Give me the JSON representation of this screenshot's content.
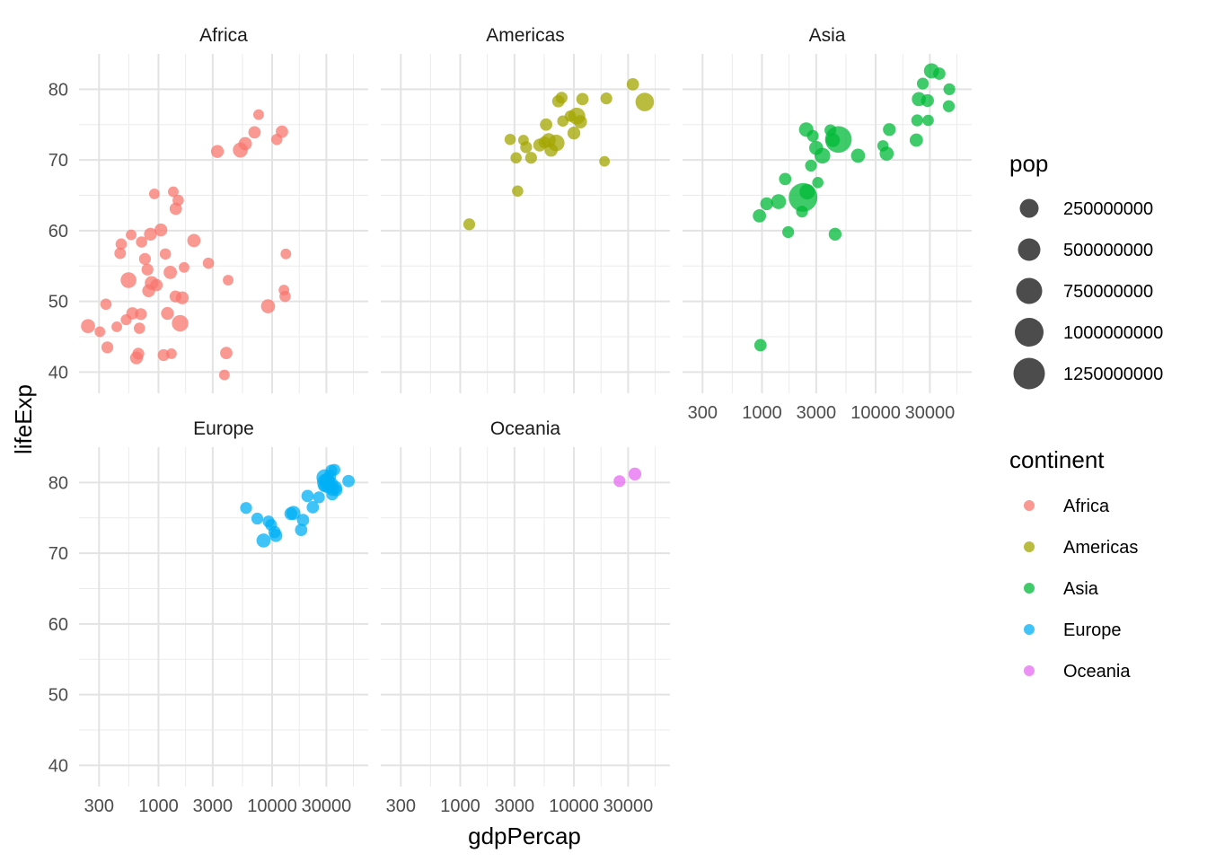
{
  "chart_data": {
    "type": "scatter",
    "facet_by": "continent",
    "xlabel": "gdpPercap",
    "ylabel": "lifeExp",
    "x_scale": "log10",
    "xlim": [
      200,
      70000
    ],
    "ylim": [
      37,
      85
    ],
    "x_ticks": [
      300,
      1000,
      3000,
      10000,
      30000
    ],
    "x_tick_labels": [
      "300",
      "1000",
      "3000",
      "10000",
      "30000"
    ],
    "y_ticks": [
      40,
      50,
      60,
      70,
      80
    ],
    "y_tick_labels": [
      "40",
      "50",
      "60",
      "70",
      "80"
    ],
    "grid": true,
    "size_legend": {
      "title": "pop",
      "breaks": [
        250000000,
        500000000,
        750000000,
        1000000000,
        1250000000
      ],
      "labels": [
        "250000000",
        "500000000",
        "750000000",
        "1000000000",
        "1250000000"
      ]
    },
    "color_legend": {
      "title": "continent",
      "position": "right"
    },
    "series": [
      {
        "name": "Africa",
        "color": "#F8766D",
        "points": [
          [
            240,
            46.5,
            20
          ],
          [
            305,
            45.7,
            6
          ],
          [
            345,
            49.6,
            8
          ],
          [
            355,
            43.5,
            10
          ],
          [
            430,
            46.4,
            6
          ],
          [
            470,
            58.1,
            8
          ],
          [
            460,
            56.8,
            9
          ],
          [
            520,
            47.4,
            7
          ],
          [
            545,
            53.0,
            30
          ],
          [
            590,
            48.3,
            12
          ],
          [
            575,
            59.4,
            6
          ],
          [
            640,
            42.0,
            14
          ],
          [
            665,
            42.6,
            10
          ],
          [
            680,
            46.2,
            8
          ],
          [
            700,
            48.2,
            10
          ],
          [
            710,
            58.4,
            8
          ],
          [
            760,
            56.0,
            10
          ],
          [
            800,
            54.5,
            10
          ],
          [
            920,
            65.2,
            6
          ],
          [
            850,
            59.5,
            14
          ],
          [
            820,
            51.5,
            14
          ],
          [
            870,
            52.6,
            18
          ],
          [
            960,
            52.3,
            12
          ],
          [
            1050,
            60.1,
            14
          ],
          [
            1110,
            42.4,
            10
          ],
          [
            1150,
            56.7,
            8
          ],
          [
            1270,
            54.1,
            16
          ],
          [
            1200,
            48.3,
            14
          ],
          [
            1300,
            42.6,
            6
          ],
          [
            1350,
            65.5,
            6
          ],
          [
            1420,
            63.1,
            12
          ],
          [
            1490,
            64.3,
            8
          ],
          [
            1410,
            50.7,
            10
          ],
          [
            1680,
            54.8,
            6
          ],
          [
            1620,
            50.5,
            14
          ],
          [
            1550,
            46.9,
            35
          ],
          [
            2050,
            58.6,
            16
          ],
          [
            2750,
            55.4,
            8
          ],
          [
            3300,
            71.2,
            14
          ],
          [
            3800,
            39.6,
            6
          ],
          [
            3950,
            42.7,
            12
          ],
          [
            4100,
            53.0,
            6
          ],
          [
            5250,
            71.4,
            25
          ],
          [
            5800,
            72.3,
            16
          ],
          [
            7000,
            73.9,
            12
          ],
          [
            7600,
            76.4,
            6
          ],
          [
            9200,
            49.3,
            20
          ],
          [
            11000,
            72.9,
            8
          ],
          [
            12200,
            74.0,
            12
          ],
          [
            12700,
            51.6,
            6
          ],
          [
            13000,
            50.7,
            8
          ],
          [
            13200,
            56.7,
            6
          ]
        ]
      },
      {
        "name": "Americas",
        "color": "#A3A500",
        "points": [
          [
            1200,
            60.9,
            10
          ],
          [
            2750,
            72.9,
            8
          ],
          [
            3100,
            70.3,
            8
          ],
          [
            3200,
            65.6,
            8
          ],
          [
            3800,
            71.8,
            10
          ],
          [
            3600,
            72.8,
            6
          ],
          [
            4200,
            70.3,
            10
          ],
          [
            5000,
            72.1,
            14
          ],
          [
            5500,
            72.5,
            10
          ],
          [
            5700,
            75.0,
            12
          ],
          [
            6000,
            72.8,
            20
          ],
          [
            6300,
            71.4,
            16
          ],
          [
            7000,
            72.4,
            35
          ],
          [
            7300,
            78.3,
            12
          ],
          [
            7800,
            78.8,
            10
          ],
          [
            8000,
            75.5,
            8
          ],
          [
            9300,
            76.2,
            8
          ],
          [
            10600,
            76.2,
            38
          ],
          [
            10000,
            73.8,
            14
          ],
          [
            11400,
            75.4,
            16
          ],
          [
            11900,
            78.6,
            12
          ],
          [
            18600,
            69.8,
            6
          ],
          [
            19300,
            78.7,
            10
          ],
          [
            33000,
            80.7,
            12
          ],
          [
            42000,
            78.2,
            50
          ]
        ]
      },
      {
        "name": "Asia",
        "color": "#00BA38",
        "points": [
          [
            950,
            62.1,
            16
          ],
          [
            970,
            43.8,
            12
          ],
          [
            1100,
            63.8,
            14
          ],
          [
            1400,
            64.1,
            25
          ],
          [
            1600,
            67.3,
            12
          ],
          [
            1700,
            59.8,
            10
          ],
          [
            2250,
            62.7,
            10
          ],
          [
            2300,
            64.7,
            170
          ],
          [
            2450,
            74.3,
            22
          ],
          [
            2500,
            65.5,
            28
          ],
          [
            2700,
            69.2,
            10
          ],
          [
            2800,
            73.4,
            10
          ],
          [
            3000,
            71.7,
            20
          ],
          [
            3100,
            66.8,
            8
          ],
          [
            3400,
            70.6,
            30
          ],
          [
            4000,
            74.2,
            10
          ],
          [
            4200,
            72.8,
            20
          ],
          [
            4400,
            59.5,
            14
          ],
          [
            4700,
            72.9,
            140
          ],
          [
            7000,
            70.6,
            20
          ],
          [
            11600,
            72.0,
            8
          ],
          [
            12500,
            70.9,
            20
          ],
          [
            13200,
            74.3,
            14
          ],
          [
            22800,
            72.8,
            16
          ],
          [
            23200,
            75.6,
            10
          ],
          [
            24000,
            78.6,
            20
          ],
          [
            26000,
            80.8,
            10
          ],
          [
            28600,
            78.4,
            14
          ],
          [
            29000,
            75.6,
            8
          ],
          [
            31000,
            82.6,
            26
          ],
          [
            36300,
            82.2,
            12
          ],
          [
            44000,
            77.6,
            10
          ],
          [
            44500,
            80.0,
            10
          ]
        ]
      },
      {
        "name": "Europe",
        "color": "#00B0F6",
        "points": [
          [
            5900,
            76.4,
            10
          ],
          [
            7400,
            74.9,
            10
          ],
          [
            8400,
            71.8,
            20
          ],
          [
            9300,
            74.5,
            10
          ],
          [
            9800,
            74.0,
            10
          ],
          [
            10500,
            73.0,
            12
          ],
          [
            10800,
            72.5,
            14
          ],
          [
            14600,
            75.6,
            14
          ],
          [
            15400,
            75.7,
            20
          ],
          [
            18000,
            73.3,
            12
          ],
          [
            18700,
            74.7,
            12
          ],
          [
            20500,
            78.1,
            12
          ],
          [
            22800,
            76.5,
            12
          ],
          [
            25800,
            77.9,
            10
          ],
          [
            28600,
            79.5,
            10
          ],
          [
            29000,
            80.7,
            35
          ],
          [
            29800,
            80.0,
            45
          ],
          [
            30600,
            80.2,
            30
          ],
          [
            31000,
            79.4,
            16
          ],
          [
            32200,
            80.9,
            14
          ],
          [
            33200,
            81.7,
            10
          ],
          [
            33500,
            79.8,
            14
          ],
          [
            33800,
            78.3,
            10
          ],
          [
            34000,
            79.0,
            14
          ],
          [
            35300,
            81.8,
            10
          ],
          [
            36200,
            79.3,
            14
          ],
          [
            36800,
            78.9,
            10
          ],
          [
            47000,
            80.2,
            12
          ]
        ]
      },
      {
        "name": "Oceania",
        "color": "#E76BF3",
        "points": [
          [
            25200,
            80.2,
            10
          ],
          [
            34400,
            81.2,
            14
          ]
        ]
      }
    ]
  }
}
